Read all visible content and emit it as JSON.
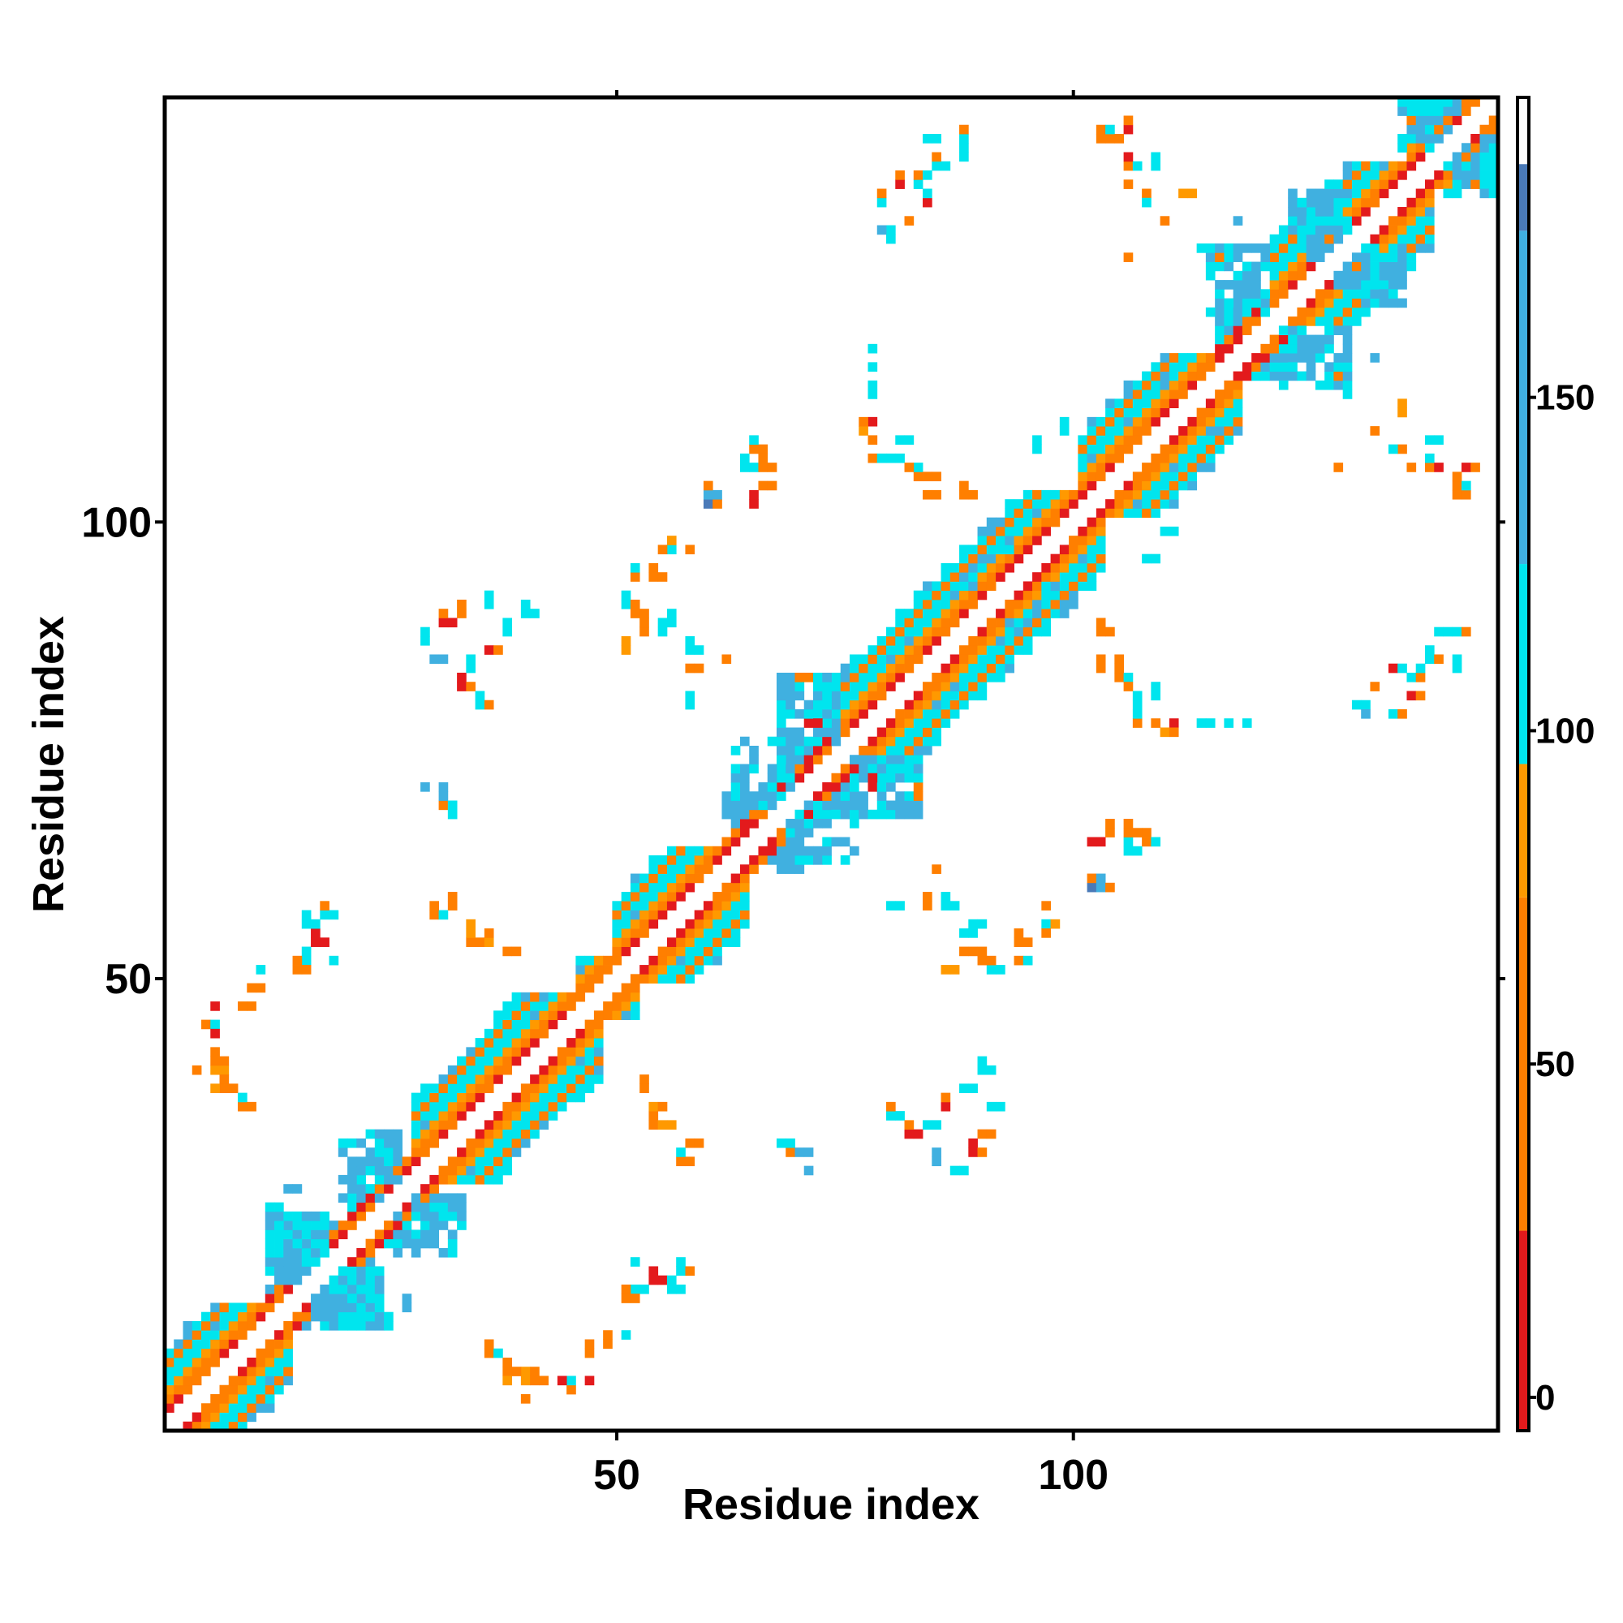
{
  "chart_data": {
    "type": "heatmap",
    "title": "",
    "xlabel": "Residue index",
    "ylabel": "Residue index",
    "xlim": [
      0.5,
      146.5
    ],
    "ylim": [
      0.5,
      146.5
    ],
    "x_ticks": [
      50,
      100
    ],
    "y_ticks": [
      50,
      100
    ],
    "n_residues": 146,
    "grid": false,
    "colorbar": {
      "position": "right",
      "range": [
        -5,
        195
      ],
      "ticks": [
        0,
        50,
        100,
        150
      ],
      "bands": [
        {
          "from": -5,
          "to": 25,
          "color": "#e31a1c"
        },
        {
          "from": 25,
          "to": 75,
          "color": "#ff7f00"
        },
        {
          "from": 75,
          "to": 95,
          "color": "#ff9900"
        },
        {
          "from": 95,
          "to": 125,
          "color": "#00e5ee"
        },
        {
          "from": 125,
          "to": 175,
          "color": "#40b0e0"
        },
        {
          "from": 175,
          "to": 185,
          "color": "#4a7ab8"
        },
        {
          "from": 185,
          "to": 195,
          "color": "#ffffff"
        }
      ]
    },
    "colors": {
      "red": "#e31a1c",
      "orange": "#ff7f00",
      "amber": "#ff9900",
      "cyan": "#00e5ee",
      "lightblue": "#40b0e0",
      "steelblue": "#4a7ab8"
    },
    "contact_bands": [
      {
        "from": 1,
        "to": 12,
        "style": "helix"
      },
      {
        "from": 12,
        "to": 21,
        "style": "sheet"
      },
      {
        "from": 21,
        "to": 28,
        "style": "sheet"
      },
      {
        "from": 28,
        "to": 46,
        "style": "helix"
      },
      {
        "from": 46,
        "to": 50,
        "style": "helix"
      },
      {
        "from": 50,
        "to": 62,
        "style": "helix"
      },
      {
        "from": 62,
        "to": 68,
        "style": "sheet"
      },
      {
        "from": 68,
        "to": 74,
        "style": "sheet"
      },
      {
        "from": 74,
        "to": 101,
        "style": "helix"
      },
      {
        "from": 101,
        "to": 116,
        "style": "helix"
      },
      {
        "from": 116,
        "to": 122,
        "style": "sheet"
      },
      {
        "from": 122,
        "to": 137,
        "style": "helix"
      },
      {
        "from": 137,
        "to": 146,
        "style": "helix"
      }
    ],
    "offdiag_clusters": [
      {
        "x": 5,
        "y": 45,
        "color": "orange"
      },
      {
        "x": 6,
        "y": 40,
        "color": "amber"
      },
      {
        "x": 7,
        "y": 38,
        "color": "orange"
      },
      {
        "x": 6,
        "y": 47,
        "color": "red"
      },
      {
        "x": 12,
        "y": 25,
        "color": "cyan"
      },
      {
        "x": 14,
        "y": 27,
        "color": "lightblue"
      },
      {
        "x": 15,
        "y": 23,
        "color": "cyan"
      },
      {
        "x": 17,
        "y": 55,
        "color": "red"
      },
      {
        "x": 18,
        "y": 57,
        "color": "cyan"
      },
      {
        "x": 19,
        "y": 52,
        "color": "cyan"
      },
      {
        "x": 10,
        "y": 49,
        "color": "orange"
      },
      {
        "x": 11,
        "y": 51,
        "color": "cyan"
      },
      {
        "x": 29,
        "y": 87,
        "color": "cyan"
      },
      {
        "x": 31,
        "y": 89,
        "color": "red"
      },
      {
        "x": 33,
        "y": 90,
        "color": "orange"
      },
      {
        "x": 30,
        "y": 85,
        "color": "lightblue"
      },
      {
        "x": 36,
        "y": 91,
        "color": "cyan"
      },
      {
        "x": 29,
        "y": 71,
        "color": "lightblue"
      },
      {
        "x": 31,
        "y": 69,
        "color": "orange"
      },
      {
        "x": 30,
        "y": 57,
        "color": "orange"
      },
      {
        "x": 34,
        "y": 54,
        "color": "orange"
      },
      {
        "x": 36,
        "y": 54,
        "color": "amber"
      },
      {
        "x": 52,
        "y": 16,
        "color": "cyan"
      },
      {
        "x": 54,
        "y": 17,
        "color": "red"
      },
      {
        "x": 56,
        "y": 16,
        "color": "cyan"
      },
      {
        "x": 51,
        "y": 15,
        "color": "orange"
      },
      {
        "x": 47,
        "y": 9,
        "color": "orange"
      },
      {
        "x": 44,
        "y": 6,
        "color": "red"
      },
      {
        "x": 41,
        "y": 6,
        "color": "orange"
      },
      {
        "x": 38,
        "y": 6,
        "color": "amber"
      },
      {
        "x": 36,
        "y": 9,
        "color": "orange"
      },
      {
        "x": 40,
        "y": 4,
        "color": "orange"
      },
      {
        "x": 53,
        "y": 38,
        "color": "orange"
      },
      {
        "x": 55,
        "y": 34,
        "color": "amber"
      },
      {
        "x": 58,
        "y": 32,
        "color": "orange"
      },
      {
        "x": 70,
        "y": 31,
        "color": "lightblue"
      },
      {
        "x": 68,
        "y": 32,
        "color": "cyan"
      },
      {
        "x": 80,
        "y": 35,
        "color": "cyan"
      },
      {
        "x": 82,
        "y": 33,
        "color": "red"
      },
      {
        "x": 84,
        "y": 34,
        "color": "cyan"
      },
      {
        "x": 86,
        "y": 36,
        "color": "red"
      },
      {
        "x": 88,
        "y": 38,
        "color": "cyan"
      },
      {
        "x": 90,
        "y": 40,
        "color": "cyan"
      },
      {
        "x": 86,
        "y": 51,
        "color": "amber"
      },
      {
        "x": 88,
        "y": 53,
        "color": "orange"
      },
      {
        "x": 91,
        "y": 51,
        "color": "cyan"
      },
      {
        "x": 94,
        "y": 52,
        "color": "orange"
      },
      {
        "x": 97,
        "y": 56,
        "color": "amber"
      },
      {
        "x": 102,
        "y": 65,
        "color": "red"
      },
      {
        "x": 104,
        "y": 66,
        "color": "orange"
      },
      {
        "x": 106,
        "y": 64,
        "color": "cyan"
      },
      {
        "x": 108,
        "y": 65,
        "color": "orange"
      },
      {
        "x": 102,
        "y": 60,
        "color": "steelblue"
      },
      {
        "x": 80,
        "y": 58,
        "color": "cyan"
      },
      {
        "x": 84,
        "y": 58,
        "color": "orange"
      },
      {
        "x": 89,
        "y": 56,
        "color": "cyan"
      },
      {
        "x": 81,
        "y": 72,
        "color": "lightblue"
      },
      {
        "x": 83,
        "y": 70,
        "color": "orange"
      },
      {
        "x": 78,
        "y": 71,
        "color": "red"
      },
      {
        "x": 105,
        "y": 83,
        "color": "orange"
      },
      {
        "x": 107,
        "y": 80,
        "color": "cyan"
      },
      {
        "x": 109,
        "y": 78,
        "color": "orange"
      },
      {
        "x": 111,
        "y": 78,
        "color": "red"
      },
      {
        "x": 114,
        "y": 78,
        "color": "cyan"
      },
      {
        "x": 119,
        "y": 78,
        "color": "cyan"
      },
      {
        "x": 131,
        "y": 80,
        "color": "cyan"
      },
      {
        "x": 133,
        "y": 82,
        "color": "orange"
      },
      {
        "x": 135,
        "y": 84,
        "color": "red"
      },
      {
        "x": 137,
        "y": 83,
        "color": "cyan"
      },
      {
        "x": 139,
        "y": 86,
        "color": "cyan"
      },
      {
        "x": 140,
        "y": 88,
        "color": "cyan"
      },
      {
        "x": 103,
        "y": 84,
        "color": "orange"
      },
      {
        "x": 65,
        "y": 103,
        "color": "red"
      },
      {
        "x": 66,
        "y": 106,
        "color": "orange"
      },
      {
        "x": 65,
        "y": 109,
        "color": "cyan"
      },
      {
        "x": 60,
        "y": 103,
        "color": "lightblue"
      },
      {
        "x": 58,
        "y": 97,
        "color": "orange"
      },
      {
        "x": 55,
        "y": 97,
        "color": "orange"
      },
      {
        "x": 54,
        "y": 94,
        "color": "orange"
      },
      {
        "x": 52,
        "y": 90,
        "color": "orange"
      },
      {
        "x": 55,
        "y": 88,
        "color": "cyan"
      },
      {
        "x": 58,
        "y": 86,
        "color": "cyan"
      },
      {
        "x": 62,
        "y": 85,
        "color": "orange"
      },
      {
        "x": 77,
        "y": 110,
        "color": "amber"
      },
      {
        "x": 78,
        "y": 107,
        "color": "orange"
      },
      {
        "x": 81,
        "y": 109,
        "color": "cyan"
      },
      {
        "x": 82,
        "y": 106,
        "color": "orange"
      },
      {
        "x": 85,
        "y": 105,
        "color": "orange"
      },
      {
        "x": 78,
        "y": 117,
        "color": "cyan"
      },
      {
        "x": 79,
        "y": 135,
        "color": "cyan"
      },
      {
        "x": 81,
        "y": 137,
        "color": "red"
      },
      {
        "x": 83,
        "y": 138,
        "color": "orange"
      },
      {
        "x": 85,
        "y": 139,
        "color": "cyan"
      },
      {
        "x": 79,
        "y": 132,
        "color": "lightblue"
      },
      {
        "x": 84,
        "y": 142,
        "color": "cyan"
      },
      {
        "x": 88,
        "y": 142,
        "color": "cyan"
      },
      {
        "x": 103,
        "y": 142,
        "color": "orange"
      },
      {
        "x": 106,
        "y": 143,
        "color": "red"
      },
      {
        "x": 106,
        "y": 139,
        "color": "orange"
      },
      {
        "x": 109,
        "y": 139,
        "color": "cyan"
      },
      {
        "x": 108,
        "y": 136,
        "color": "orange"
      },
      {
        "x": 112,
        "y": 136,
        "color": "amber"
      },
      {
        "x": 118,
        "y": 133,
        "color": "lightblue"
      },
      {
        "x": 116,
        "y": 128,
        "color": "cyan"
      },
      {
        "x": 123,
        "y": 119,
        "color": "cyan"
      },
      {
        "x": 126,
        "y": 117,
        "color": "lightblue"
      },
      {
        "x": 130,
        "y": 114,
        "color": "cyan"
      },
      {
        "x": 133,
        "y": 110,
        "color": "orange"
      },
      {
        "x": 135,
        "y": 108,
        "color": "cyan"
      },
      {
        "x": 137,
        "y": 106,
        "color": "orange"
      },
      {
        "x": 140,
        "y": 106,
        "color": "red"
      },
      {
        "x": 142,
        "y": 104,
        "color": "orange"
      },
      {
        "x": 129,
        "y": 106,
        "color": "orange"
      },
      {
        "x": 108,
        "y": 96,
        "color": "cyan"
      },
      {
        "x": 110,
        "y": 99,
        "color": "cyan"
      },
      {
        "x": 103,
        "y": 88,
        "color": "orange"
      },
      {
        "x": 92,
        "y": 97,
        "color": "cyan"
      },
      {
        "x": 89,
        "y": 93,
        "color": "lightblue"
      }
    ]
  }
}
